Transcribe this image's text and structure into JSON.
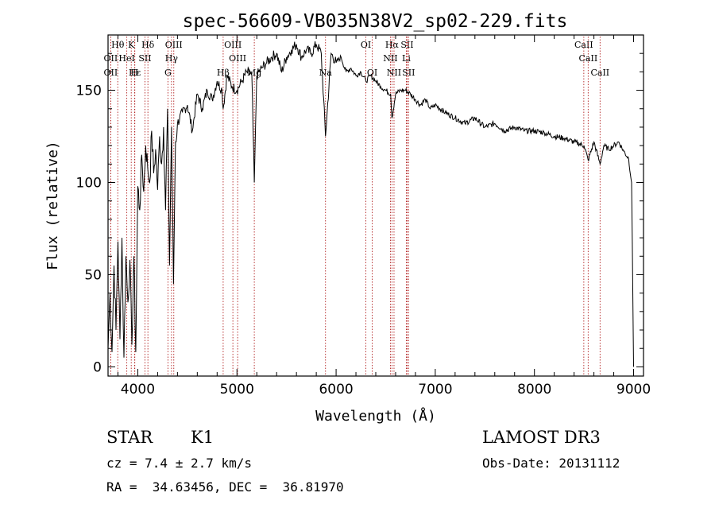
{
  "chart_data": {
    "type": "line",
    "title": "spec-56609-VB035N38V2_sp02-229.fits",
    "xlabel": "Wavelength (Å)",
    "ylabel": "Flux (relative)",
    "xlim": [
      3700,
      9100
    ],
    "ylim": [
      -5,
      180
    ],
    "xticks": [
      4000,
      5000,
      6000,
      7000,
      8000,
      9000
    ],
    "yticks": [
      0,
      50,
      100,
      150
    ],
    "series": [
      {
        "name": "spectrum",
        "x": [
          3700,
          3720,
          3740,
          3760,
          3780,
          3800,
          3820,
          3840,
          3860,
          3880,
          3900,
          3920,
          3940,
          3960,
          3980,
          4000,
          4020,
          4040,
          4060,
          4080,
          4100,
          4120,
          4140,
          4160,
          4180,
          4200,
          4220,
          4240,
          4260,
          4280,
          4300,
          4320,
          4340,
          4360,
          4380,
          4400,
          4450,
          4500,
          4550,
          4600,
          4650,
          4700,
          4750,
          4800,
          4850,
          4861,
          4900,
          4950,
          5000,
          5050,
          5100,
          5150,
          5175,
          5200,
          5250,
          5300,
          5350,
          5400,
          5450,
          5500,
          5550,
          5600,
          5650,
          5700,
          5750,
          5800,
          5850,
          5893,
          5950,
          6000,
          6050,
          6100,
          6150,
          6200,
          6250,
          6300,
          6350,
          6400,
          6450,
          6500,
          6550,
          6563,
          6600,
          6650,
          6700,
          6750,
          6800,
          6850,
          6900,
          6950,
          7000,
          7100,
          7200,
          7300,
          7400,
          7500,
          7600,
          7700,
          7800,
          7900,
          8000,
          8100,
          8200,
          8300,
          8400,
          8500,
          8542,
          8600,
          8662,
          8700,
          8750,
          8800,
          8850,
          8900,
          8950,
          8980,
          9000
        ],
        "values": [
          10,
          40,
          8,
          55,
          20,
          68,
          15,
          70,
          5,
          60,
          35,
          58,
          12,
          60,
          8,
          98,
          85,
          115,
          95,
          120,
          108,
          100,
          128,
          105,
          118,
          96,
          125,
          110,
          130,
          85,
          140,
          55,
          130,
          45,
          122,
          132,
          138,
          142,
          128,
          148,
          140,
          150,
          145,
          155,
          150,
          140,
          158,
          152,
          150,
          155,
          160,
          158,
          100,
          158,
          162,
          165,
          168,
          170,
          160,
          168,
          172,
          175,
          168,
          172,
          170,
          175,
          170,
          125,
          170,
          165,
          168,
          160,
          162,
          158,
          160,
          155,
          158,
          155,
          152,
          150,
          148,
          135,
          148,
          150,
          150,
          148,
          145,
          142,
          145,
          140,
          142,
          138,
          135,
          132,
          135,
          130,
          132,
          128,
          130,
          128,
          128,
          127,
          125,
          124,
          122,
          120,
          112,
          122,
          110,
          120,
          118,
          120,
          122,
          117,
          113,
          100,
          0
        ]
      }
    ],
    "line_markers": [
      {
        "label": "Hθ",
        "x": 3798,
        "row": 0
      },
      {
        "label": "K",
        "x": 3934,
        "row": 0
      },
      {
        "label": "Hδ",
        "x": 4102,
        "row": 0
      },
      {
        "label": "OII",
        "x": 3727,
        "row": 1
      },
      {
        "label": "HeI",
        "x": 3889,
        "row": 1
      },
      {
        "label": "SII",
        "x": 4072,
        "row": 1
      },
      {
        "label": "OII",
        "x": 3727,
        "row": 2
      },
      {
        "label": "Hε",
        "x": 3970,
        "row": 2
      },
      {
        "label": "H",
        "x": 3968,
        "row": 2
      },
      {
        "label": "OIII",
        "x": 4363,
        "row": 0
      },
      {
        "label": "Hγ",
        "x": 4340,
        "row": 1
      },
      {
        "label": "G",
        "x": 4304,
        "row": 2
      },
      {
        "label": "Hβ",
        "x": 4861,
        "row": 2
      },
      {
        "label": "OIII",
        "x": 4959,
        "row": 0
      },
      {
        "label": "OIII",
        "x": 5007,
        "row": 1
      },
      {
        "label": "Mg",
        "x": 5175,
        "row": 2
      },
      {
        "label": "Na",
        "x": 5893,
        "row": 2
      },
      {
        "label": "OI",
        "x": 6300,
        "row": 0
      },
      {
        "label": "OI",
        "x": 6364,
        "row": 2
      },
      {
        "label": "Hα",
        "x": 6563,
        "row": 0
      },
      {
        "label": "SII",
        "x": 6716,
        "row": 0
      },
      {
        "label": "NII",
        "x": 6548,
        "row": 1
      },
      {
        "label": "Li",
        "x": 6708,
        "row": 1
      },
      {
        "label": "NII",
        "x": 6584,
        "row": 2
      },
      {
        "label": "SII",
        "x": 6731,
        "row": 2
      },
      {
        "label": "CaII",
        "x": 8498,
        "row": 0
      },
      {
        "label": "CaII",
        "x": 8542,
        "row": 1
      },
      {
        "label": "CaII",
        "x": 8662,
        "row": 2
      }
    ]
  },
  "info": {
    "object_class": "STAR",
    "subclass": "K1",
    "redshift": "cz = 7.4 ± 2.7 km/s",
    "coords": "RA =  34.63456, DEC =  36.81970",
    "survey": "LAMOST DR3",
    "obs_date": "Obs-Date: 20131112"
  }
}
